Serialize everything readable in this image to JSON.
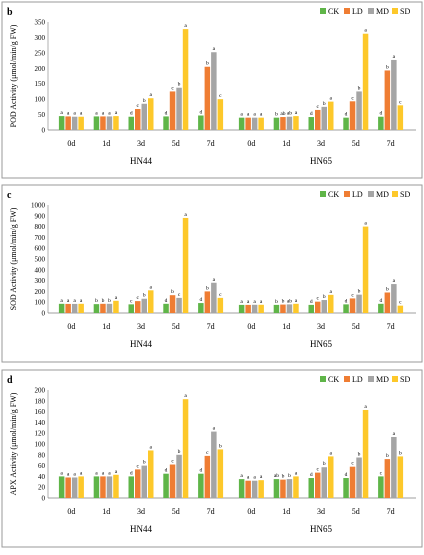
{
  "series_names": [
    "CK",
    "LD",
    "MD",
    "SD"
  ],
  "colors": {
    "CK": "#5fb548",
    "LD": "#ef7d33",
    "MD": "#a5a5a5",
    "SD": "#fdc82a",
    "border": "#9a9a9a",
    "axis": "#7f7f7f",
    "text": "#000000"
  },
  "chart_data": [
    {
      "type": "bar",
      "panel_label": "b",
      "ylabel": "POD Activity (μmol/min/g FW)",
      "ylim": [
        0,
        350
      ],
      "yticks": [
        0,
        50,
        100,
        150,
        200,
        250,
        300,
        350
      ],
      "groups": [
        "HN44",
        "HN65"
      ],
      "categories": [
        "0d",
        "1d",
        "3d",
        "5d",
        "7d"
      ],
      "series": [
        {
          "name": "CK",
          "values": [
            [
              45,
              44,
              43,
              44,
              47
            ],
            [
              40,
              40,
              42,
              40,
              43
            ]
          ],
          "letters": [
            [
              "a",
              "a",
              "d",
              "d",
              "d"
            ],
            [
              "a",
              "b",
              "d",
              "d",
              "d"
            ]
          ]
        },
        {
          "name": "LD",
          "values": [
            [
              44,
              44,
              68,
              125,
              205
            ],
            [
              40,
              42,
              65,
              93,
              193
            ]
          ],
          "letters": [
            [
              "a",
              "a",
              "c",
              "c",
              "b"
            ],
            [
              "a",
              "ab",
              "c",
              "c",
              "b"
            ]
          ]
        },
        {
          "name": "MD",
          "values": [
            [
              43,
              44,
              85,
              137,
              252
            ],
            [
              40,
              43,
              75,
              125,
              227
            ]
          ],
          "letters": [
            [
              "a",
              "a",
              "b",
              "b",
              "a"
            ],
            [
              "a",
              "ab",
              "b",
              "b",
              "a"
            ]
          ]
        },
        {
          "name": "SD",
          "values": [
            [
              43,
              45,
              103,
              327,
              100
            ],
            [
              40,
              45,
              92,
              312,
              80
            ]
          ],
          "letters": [
            [
              "a",
              "a",
              "a",
              "a",
              "c"
            ],
            [
              "a",
              "a",
              "a",
              "a",
              "c"
            ]
          ]
        }
      ]
    },
    {
      "type": "bar",
      "panel_label": "c",
      "ylabel": "SOD Activity (μmol/min/g FW)",
      "ylim": [
        0,
        1000
      ],
      "yticks": [
        0,
        100,
        200,
        300,
        400,
        500,
        600,
        700,
        800,
        900,
        1000
      ],
      "groups": [
        "HN44",
        "HN65"
      ],
      "categories": [
        "0d",
        "1d",
        "3d",
        "5d",
        "7d"
      ],
      "series": [
        {
          "name": "CK",
          "values": [
            [
              85,
              82,
              80,
              85,
              92
            ],
            [
              75,
              75,
              75,
              80,
              85
            ]
          ],
          "letters": [
            [
              "a",
              "b",
              "c",
              "d",
              "d"
            ],
            [
              "a",
              "b",
              "d",
              "d",
              "d"
            ]
          ]
        },
        {
          "name": "LD",
          "values": [
            [
              84,
              85,
              110,
              165,
              200
            ],
            [
              75,
              78,
              105,
              135,
              190
            ]
          ],
          "letters": [
            [
              "a",
              "b",
              "c",
              "b",
              "b"
            ],
            [
              "a",
              "b",
              "c",
              "c",
              "b"
            ]
          ]
        },
        {
          "name": "MD",
          "values": [
            [
              84,
              85,
              132,
              140,
              280
            ],
            [
              76,
              80,
              120,
              170,
              268
            ]
          ],
          "letters": [
            [
              "a",
              "b",
              "b",
              "c",
              "a"
            ],
            [
              "a",
              "ab",
              "b",
              "b",
              "a"
            ]
          ]
        },
        {
          "name": "SD",
          "values": [
            [
              85,
              113,
              210,
              880,
              140
            ],
            [
              76,
              85,
              168,
              800,
              68
            ]
          ],
          "letters": [
            [
              "a",
              "a",
              "a",
              "a",
              "c"
            ],
            [
              "a",
              "a",
              "a",
              "a",
              "c"
            ]
          ]
        }
      ]
    },
    {
      "type": "bar",
      "panel_label": "d",
      "ylabel": "APX Activity (μmol/min/g FW)",
      "ylim": [
        0,
        200
      ],
      "yticks": [
        0,
        20,
        40,
        60,
        80,
        100,
        120,
        140,
        160,
        180,
        200
      ],
      "groups": [
        "HN44",
        "HN65"
      ],
      "categories": [
        "0d",
        "1d",
        "3d",
        "5d",
        "7d"
      ],
      "series": [
        {
          "name": "CK",
          "values": [
            [
              40,
              40,
              40,
              45,
              45
            ],
            [
              35,
              35,
              37,
              37,
              40
            ]
          ],
          "letters": [
            [
              "a",
              "a",
              "d",
              "d",
              "d"
            ],
            [
              "a",
              "ab",
              "d",
              "d",
              "c"
            ]
          ]
        },
        {
          "name": "LD",
          "values": [
            [
              38,
              40,
              53,
              62,
              78
            ],
            [
              32,
              34,
              47,
              58,
              72
            ]
          ],
          "letters": [
            [
              "a",
              "a",
              "c",
              "c",
              "c"
            ],
            [
              "a",
              "b",
              "c",
              "c",
              "b"
            ]
          ]
        },
        {
          "name": "MD",
          "values": [
            [
              38,
              40,
              60,
              80,
              123
            ],
            [
              32,
              35,
              57,
              75,
              113
            ]
          ],
          "letters": [
            [
              "a",
              "a",
              "b",
              "b",
              "a"
            ],
            [
              "a",
              "b",
              "b",
              "b",
              "a"
            ]
          ]
        },
        {
          "name": "SD",
          "values": [
            [
              40,
              43,
              88,
              183,
              90
            ],
            [
              33,
              40,
              77,
              163,
              77
            ]
          ],
          "letters": [
            [
              "a",
              "a",
              "a",
              "a",
              "b"
            ],
            [
              "a",
              "a",
              "a",
              "a",
              "b"
            ]
          ]
        }
      ]
    }
  ]
}
